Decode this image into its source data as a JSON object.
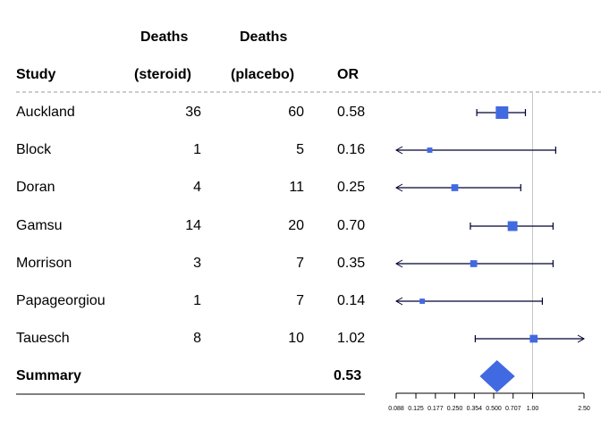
{
  "chart_data": {
    "type": "forest",
    "headers": {
      "study": "Study",
      "steroid_top": "Deaths",
      "steroid_bottom": "(steroid)",
      "placebo_top": "Deaths",
      "placebo_bottom": "(placebo)",
      "or": "OR"
    },
    "rows": [
      {
        "study": "Auckland",
        "steroid": "36",
        "placebo": "60",
        "or_label": "0.58",
        "or": 0.58,
        "lower": 0.37,
        "upper": 0.88,
        "weight": 1.0
      },
      {
        "study": "Block",
        "steroid": "1",
        "placebo": "5",
        "or_label": "0.16",
        "or": 0.16,
        "lower": 0.02,
        "upper": 1.51,
        "weight": 0.42
      },
      {
        "study": "Doran",
        "steroid": "4",
        "placebo": "11",
        "or_label": "0.25",
        "or": 0.25,
        "lower": 0.08,
        "upper": 0.81,
        "weight": 0.55
      },
      {
        "study": "Gamsu",
        "steroid": "14",
        "placebo": "20",
        "or_label": "0.70",
        "or": 0.7,
        "lower": 0.33,
        "upper": 1.44,
        "weight": 0.78
      },
      {
        "study": "Morrison",
        "steroid": "3",
        "placebo": "7",
        "or_label": "0.35",
        "or": 0.35,
        "lower": 0.08,
        "upper": 1.44,
        "weight": 0.55
      },
      {
        "study": "Papageorgiou",
        "steroid": "1",
        "placebo": "7",
        "or_label": "0.14",
        "or": 0.14,
        "lower": 0.02,
        "upper": 1.19,
        "weight": 0.42
      },
      {
        "study": "Tauesch",
        "steroid": "8",
        "placebo": "10",
        "or_label": "1.02",
        "or": 1.02,
        "lower": 0.36,
        "upper": 3.0,
        "weight": 0.62
      }
    ],
    "summary": {
      "label": "Summary",
      "or_label": "0.53",
      "or": 0.53,
      "lower": 0.39,
      "upper": 0.73
    },
    "x_scale": "log",
    "xlim": [
      0.088,
      2.5
    ],
    "reference_line": 1.0,
    "x_ticks": [
      0.088,
      0.125,
      0.177,
      0.25,
      0.354,
      0.5,
      0.707,
      1.0,
      2.5
    ],
    "x_tick_labels": [
      "0.088",
      "0.125",
      "0.177",
      "0.250",
      "0.354",
      "0.500",
      "0.707",
      "1.00",
      "2.50"
    ],
    "colors": {
      "box": "#4169E1",
      "ci": "#000033",
      "ref": "#c8c8c8",
      "dash": "#999999"
    }
  }
}
